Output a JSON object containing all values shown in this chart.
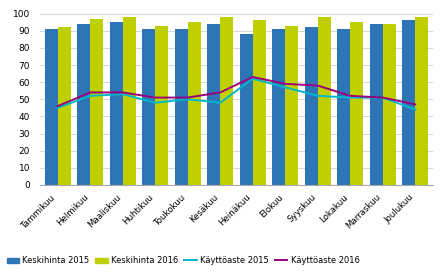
{
  "months": [
    "Tammikuu",
    "Helmikuu",
    "Maaliskuu",
    "Huhtikuu",
    "Toukokuu",
    "Kesäkuu",
    "Heinäkuu",
    "Elokuu",
    "Syyskuu",
    "Lokakuu",
    "Marraskuu",
    "Joulukuu"
  ],
  "keskihinta_2015": [
    91,
    94,
    95,
    91,
    91,
    94,
    88,
    91,
    92,
    91,
    94,
    96
  ],
  "keskihinta_2016": [
    92,
    97,
    98,
    93,
    95,
    98,
    96,
    93,
    98,
    95,
    94,
    98
  ],
  "kayttoaste_2015": [
    45,
    52,
    53,
    48,
    50,
    48,
    62,
    57,
    52,
    51,
    51,
    44
  ],
  "kayttoaste_2016": [
    46,
    54,
    54,
    51,
    51,
    54,
    63,
    59,
    58,
    52,
    51,
    47
  ],
  "bar_color_2015": "#2E75B6",
  "bar_color_2016": "#BFCF00",
  "line_color_2015": "#00B8CC",
  "line_color_2016": "#9B007A",
  "ylim": [
    0,
    100
  ],
  "yticks": [
    0,
    10,
    20,
    30,
    40,
    50,
    60,
    70,
    80,
    90,
    100
  ],
  "legend_labels": [
    "Keskihinta 2015",
    "Keskihinta 2016",
    "Käyttöaste 2015",
    "Käyttöaste 2016"
  ],
  "background_color": "#ffffff",
  "grid_color": "#d0d0d0"
}
